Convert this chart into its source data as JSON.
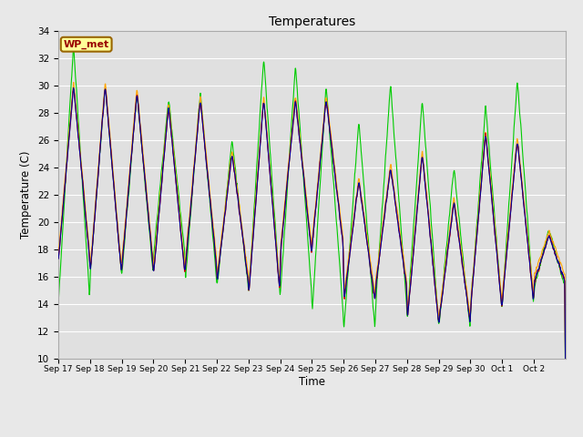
{
  "title": "Temperatures",
  "xlabel": "Time",
  "ylabel": "Temperature (C)",
  "ylim": [
    10,
    34
  ],
  "yticks": [
    10,
    12,
    14,
    16,
    18,
    20,
    22,
    24,
    26,
    28,
    30,
    32,
    34
  ],
  "fig_bg_color": "#e8e8e8",
  "plot_bg_color": "#e0e0e0",
  "grid_color": "#ffffff",
  "series": {
    "CR1000 panelT": {
      "color": "#cc0000",
      "lw": 0.8
    },
    "HMP": {
      "color": "#ffa500",
      "lw": 0.8
    },
    "NR01 PRT": {
      "color": "#00cc00",
      "lw": 0.8
    },
    "AM25T PRT": {
      "color": "#000099",
      "lw": 0.8
    }
  },
  "annotation_text": "WP_met",
  "annotation_bg": "#ffff99",
  "annotation_border": "#996600",
  "annotation_text_color": "#990000",
  "x_tick_labels": [
    "Sep 17",
    "Sep 18",
    "Sep 19",
    "Sep 20",
    "Sep 21",
    "Sep 22",
    "Sep 23",
    "Sep 24",
    "Sep 25",
    "Sep 26",
    "Sep 27",
    "Sep 28",
    "Sep 29",
    "Sep 30",
    "Oct 1",
    "Oct 2"
  ],
  "num_days": 16,
  "figsize": [
    6.4,
    4.8
  ],
  "dpi": 100
}
